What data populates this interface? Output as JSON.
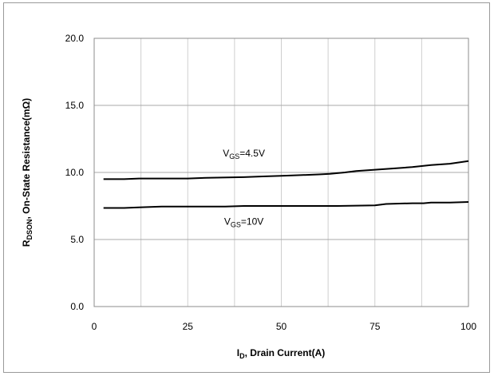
{
  "chart_data": {
    "type": "line",
    "xlabel": {
      "main": "I",
      "sub": "D",
      "rest": ", Drain Current(A)"
    },
    "ylabel": {
      "main": "R",
      "sub": "DSON",
      "rest": ", On-State Resistance(mΩ)"
    },
    "xlim": [
      0,
      100
    ],
    "ylim": [
      0,
      20
    ],
    "xticks": [
      0,
      25,
      50,
      75,
      100
    ],
    "xtick_labels": [
      "0",
      "25",
      "50",
      "75",
      "100"
    ],
    "yticks": [
      0,
      5,
      10,
      15,
      20
    ],
    "ytick_labels": [
      "0.0",
      "5.0",
      "10.0",
      "15.0",
      "20.0"
    ],
    "x_gridlines": [
      0,
      12.5,
      25,
      37.5,
      50,
      62.5,
      75,
      87.5,
      100
    ],
    "y_gridlines": [
      0,
      5,
      10,
      15,
      20
    ],
    "grid": true,
    "series": [
      {
        "label": {
          "main": "V",
          "sub": "GS",
          "rest": "=4.5V"
        },
        "label_at": [
          40,
          11.2
        ],
        "x": [
          2.5,
          8,
          12,
          20,
          25,
          30,
          40,
          45,
          50,
          55,
          60,
          63,
          67,
          70,
          75,
          80,
          85,
          90,
          95,
          100
        ],
        "y": [
          9.5,
          9.5,
          9.55,
          9.55,
          9.55,
          9.6,
          9.65,
          9.7,
          9.75,
          9.8,
          9.85,
          9.9,
          10.0,
          10.1,
          10.2,
          10.3,
          10.4,
          10.55,
          10.65,
          10.85
        ]
      },
      {
        "label": {
          "main": "V",
          "sub": "GS",
          "rest": "=10V"
        },
        "label_at": [
          40,
          6.1
        ],
        "x": [
          2.5,
          8,
          12,
          18,
          25,
          35,
          40,
          50,
          60,
          65,
          75,
          78,
          85,
          88,
          90,
          95,
          100
        ],
        "y": [
          7.35,
          7.35,
          7.4,
          7.45,
          7.45,
          7.45,
          7.5,
          7.5,
          7.5,
          7.5,
          7.55,
          7.65,
          7.7,
          7.7,
          7.75,
          7.75,
          7.8
        ]
      }
    ]
  }
}
